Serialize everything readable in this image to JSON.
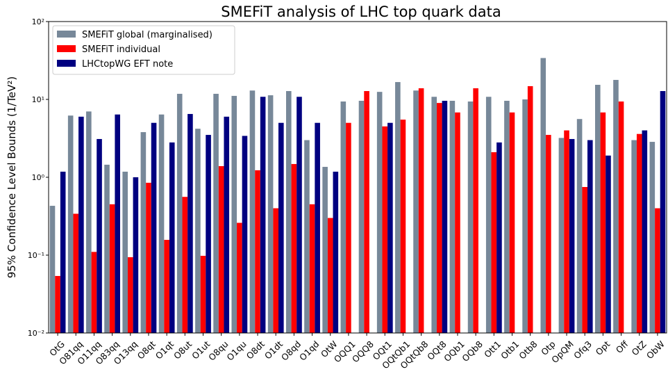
{
  "chart_data": {
    "type": "bar",
    "title": "SMEFiT analysis of LHC top quark data",
    "y_label": "95% Confidence Level Bounds (1/TeV²)",
    "categories": [
      "OtG",
      "O81qq",
      "O11qq",
      "O83qq",
      "O13qq",
      "O8qt",
      "O1qt",
      "O8ut",
      "O1ut",
      "O8qu",
      "O1qu",
      "O8dt",
      "O1dt",
      "O8qd",
      "O1qd",
      "OtW",
      "OQQ1",
      "OQQ8",
      "OQt1",
      "OQtQb1",
      "OQtQb8",
      "OQt8",
      "OQb1",
      "OQb8",
      "Ott1",
      "Otb1",
      "Otb8",
      "Otp",
      "OpQM",
      "Ofq3",
      "Opt",
      "Off",
      "OtZ",
      "ObW"
    ],
    "series": [
      {
        "name": "SMEFiT global (marginalised)",
        "color": "#778899",
        "values": [
          0.43,
          6.2,
          7.0,
          1.45,
          1.18,
          3.8,
          6.4,
          11.8,
          4.2,
          11.8,
          11.1,
          13,
          11.3,
          12.8,
          3.0,
          1.36,
          9.4,
          9.6,
          12.5,
          16.7,
          13,
          10.8,
          9.6,
          9.4,
          10.8,
          9.6,
          10,
          34,
          3.2,
          5.6,
          15.4,
          17.8,
          3.0,
          2.85
        ]
      },
      {
        "name": "SMEFiT individual",
        "color": "#ff0000",
        "values": [
          0.054,
          0.34,
          0.11,
          0.45,
          0.094,
          0.85,
          0.157,
          0.56,
          0.098,
          1.39,
          0.26,
          1.23,
          0.4,
          1.48,
          0.45,
          0.3,
          5.0,
          12.8,
          4.5,
          5.5,
          13.9,
          9.0,
          6.8,
          13.9,
          2.1,
          6.8,
          14.8,
          3.5,
          4.0,
          0.75,
          6.8,
          9.4,
          3.6,
          0.4
        ]
      },
      {
        "name": "LHCtopWG EFT note",
        "color": "#000080",
        "values": [
          1.18,
          6.0,
          3.1,
          6.4,
          1.0,
          5.0,
          2.8,
          6.5,
          3.5,
          6.0,
          3.4,
          10.8,
          5.0,
          10.8,
          5.0,
          1.18,
          null,
          null,
          5.0,
          null,
          null,
          9.6,
          null,
          null,
          2.8,
          null,
          null,
          null,
          3.1,
          3.0,
          1.9,
          null,
          4.0,
          12.8
        ]
      }
    ],
    "ylim": [
      0.01,
      100
    ],
    "log_y": true,
    "yticks": [
      {
        "value": 0.01,
        "label": "10⁻²"
      },
      {
        "value": 0.1,
        "label": "10⁻¹"
      },
      {
        "value": 1,
        "label": "10⁰"
      },
      {
        "value": 10,
        "label": "10¹"
      },
      {
        "value": 100,
        "label": "10²"
      }
    ],
    "legend": "upper left"
  }
}
